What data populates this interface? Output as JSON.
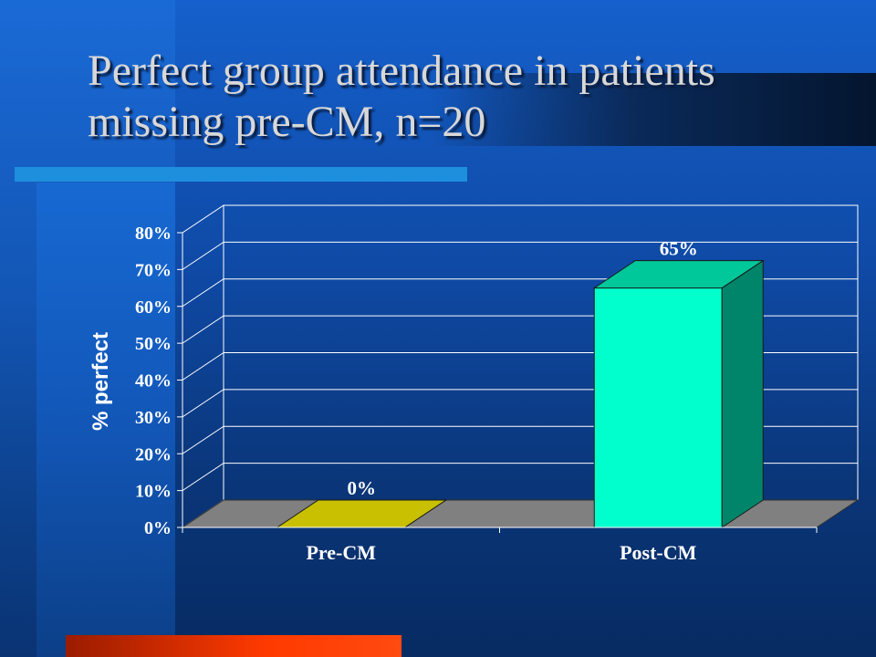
{
  "slide": {
    "title": "Perfect group attendance in patients\nmissing pre-CM, n=20"
  },
  "colors": {
    "background": "#0f4aa6",
    "accent_stripe": "#1e8fdc",
    "bottom_stripe": "#ff3a00",
    "grid": "#ffffff",
    "floor": "#808080",
    "bar_pre_top": "#c8c000",
    "bar_post_front": "#00ffcc",
    "bar_post_side": "#00856a",
    "bar_post_top": "#00c89a"
  },
  "chart_data": {
    "type": "bar",
    "title": "",
    "xlabel": "",
    "ylabel": "% perfect",
    "categories": [
      "Pre-CM",
      "Post-CM"
    ],
    "values": [
      0,
      65
    ],
    "value_labels": [
      "0%",
      "65%"
    ],
    "ylim": [
      0,
      80
    ],
    "yticks": [
      "0%",
      "10%",
      "20%",
      "30%",
      "40%",
      "50%",
      "60%",
      "70%",
      "80%"
    ],
    "grid": true,
    "legend": "none",
    "style": "3d"
  }
}
